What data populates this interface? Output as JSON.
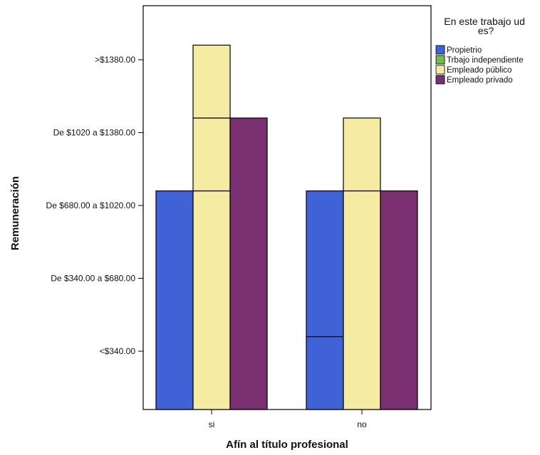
{
  "chart_data": {
    "type": "bar",
    "categories": [
      "si",
      "no"
    ],
    "xlabel": "Afín al título profesional",
    "ylabel": "Remuneración",
    "y_ticks": [
      "<$340.00",
      "De $340.00 a $680.00",
      "De $680.00 a $1020.00",
      "De $1020 a $1380.00",
      ">$1380.00"
    ],
    "ylim": [
      0,
      5.9
    ],
    "legend": {
      "title": "En este trabajo ud es?",
      "placement": "top-right",
      "entries": [
        "Propietrio",
        "Trbajo independiente",
        "Empleado público",
        "Empleado privado"
      ]
    },
    "series": [
      {
        "name": "Propietrio",
        "color": "#3f62d6",
        "values": [
          3,
          3
        ],
        "segments": [
          [
            3
          ],
          [
            1,
            2
          ]
        ]
      },
      {
        "name": "Trbajo independiente",
        "color": "#6fbf4a",
        "values": [
          0,
          0
        ],
        "segments": [
          [],
          []
        ]
      },
      {
        "name": "Empleado público",
        "color": "#f5eba3",
        "values": [
          5,
          4
        ],
        "segments": [
          [
            3,
            1,
            1
          ],
          [
            3,
            1
          ]
        ]
      },
      {
        "name": "Empleado privado",
        "color": "#7a2f70",
        "values": [
          4,
          3
        ],
        "segments": [
          [
            4
          ],
          [
            3
          ]
        ]
      }
    ],
    "grid": false
  }
}
